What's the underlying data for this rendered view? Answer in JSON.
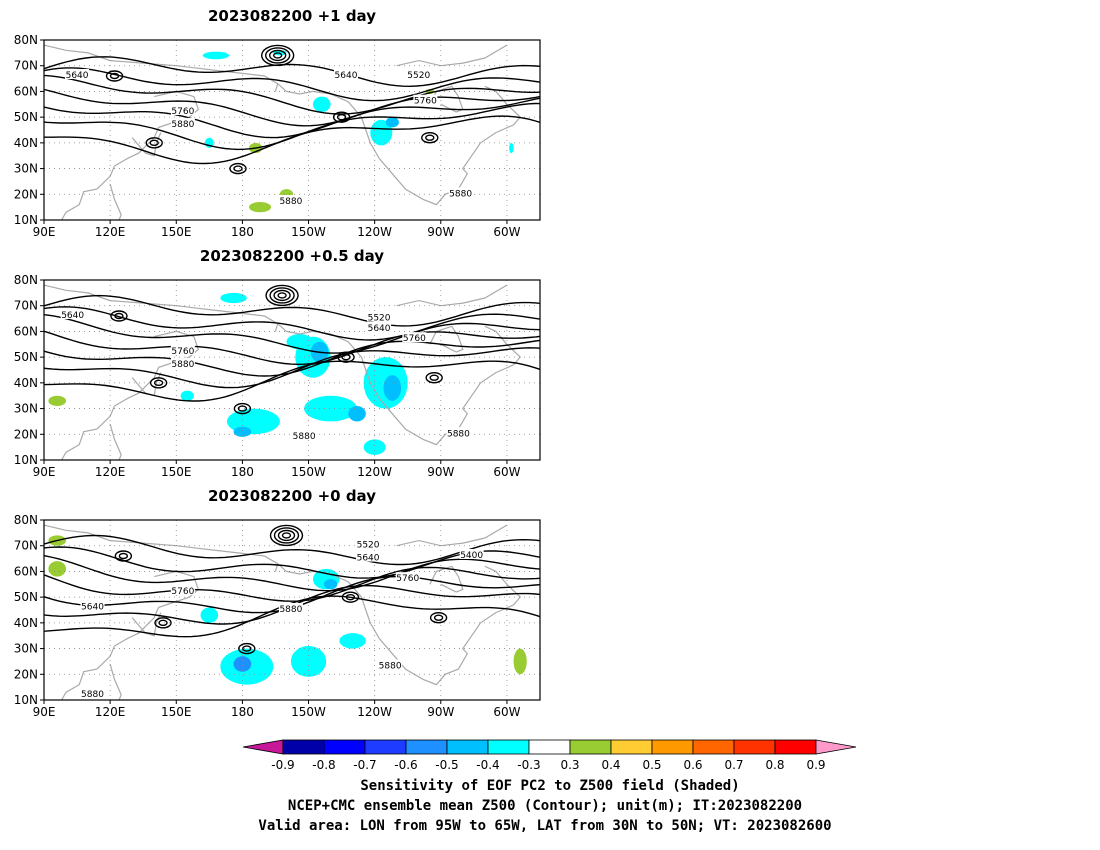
{
  "chart_data": {
    "type": "heatmap",
    "panels": [
      {
        "title": "2023082200 +1 day",
        "xticks": [
          "90E",
          "120E",
          "150E",
          "180",
          "150W",
          "120W",
          "90W",
          "60W"
        ],
        "yticks": [
          "80N",
          "70N",
          "60N",
          "50N",
          "40N",
          "30N",
          "20N",
          "10N"
        ],
        "contour_labels": [
          {
            "text": "5640",
            "lon": 105,
            "lat": 66
          },
          {
            "text": "5640",
            "lon": 227,
            "lat": 66
          },
          {
            "text": "5520",
            "lon": 260,
            "lat": 66
          },
          {
            "text": "5760",
            "lon": 153,
            "lat": 52
          },
          {
            "text": "5880",
            "lon": 153,
            "lat": 47
          },
          {
            "text": "5760",
            "lon": 263,
            "lat": 56
          },
          {
            "text": "5880",
            "lon": 202,
            "lat": 17
          },
          {
            "text": "5880",
            "lon": 279,
            "lat": 20
          }
        ]
      },
      {
        "title": "2023082200 +0.5 day",
        "xticks": [
          "90E",
          "120E",
          "150E",
          "180",
          "150W",
          "120W",
          "90W",
          "60W"
        ],
        "yticks": [
          "80N",
          "70N",
          "60N",
          "50N",
          "40N",
          "30N",
          "20N",
          "10N"
        ],
        "contour_labels": [
          {
            "text": "5640",
            "lon": 103,
            "lat": 66
          },
          {
            "text": "5520",
            "lon": 242,
            "lat": 65
          },
          {
            "text": "5640",
            "lon": 242,
            "lat": 61
          },
          {
            "text": "5760",
            "lon": 153,
            "lat": 52
          },
          {
            "text": "5880",
            "lon": 153,
            "lat": 47
          },
          {
            "text": "5760",
            "lon": 258,
            "lat": 57
          },
          {
            "text": "5880",
            "lon": 208,
            "lat": 19
          },
          {
            "text": "5880",
            "lon": 278,
            "lat": 20
          }
        ]
      },
      {
        "title": "2023082200 +0 day",
        "xticks": [
          "90E",
          "120E",
          "150E",
          "180",
          "150W",
          "120W",
          "90W",
          "60W"
        ],
        "yticks": [
          "80N",
          "70N",
          "60N",
          "50N",
          "40N",
          "30N",
          "20N",
          "10N"
        ],
        "contour_labels": [
          {
            "text": "5520",
            "lon": 237,
            "lat": 70
          },
          {
            "text": "5640",
            "lon": 237,
            "lat": 65
          },
          {
            "text": "5400",
            "lon": 284,
            "lat": 66
          },
          {
            "text": "5760",
            "lon": 255,
            "lat": 57
          },
          {
            "text": "5760",
            "lon": 153,
            "lat": 52
          },
          {
            "text": "5640",
            "lon": 112,
            "lat": 46
          },
          {
            "text": "5880",
            "lon": 202,
            "lat": 45
          },
          {
            "text": "5880",
            "lon": 247,
            "lat": 23
          },
          {
            "text": "5880",
            "lon": 112,
            "lat": 12
          }
        ]
      }
    ],
    "colorbar": {
      "ticks": [
        "-0.9",
        "-0.8",
        "-0.7",
        "-0.6",
        "-0.5",
        "-0.4",
        "-0.3",
        "0.3",
        "0.4",
        "0.5",
        "0.6",
        "0.7",
        "0.8",
        "0.9"
      ],
      "colors": [
        "#c8189a",
        "#0000a8",
        "#0000ff",
        "#1e3cff",
        "#1e90ff",
        "#00bfff",
        "#00ffff",
        "#ffffff",
        "#99cc33",
        "#ffcc33",
        "#ff9900",
        "#ff6600",
        "#ff3300",
        "#ff0000",
        "#ff99cc"
      ]
    },
    "colors": {
      "contour": "#000000",
      "coast": "#aaaaaa",
      "grid": "#888888"
    }
  },
  "caption": {
    "line1": "Sensitivity of EOF PC2 to Z500 field (Shaded)",
    "line2": "NCEP+CMC ensemble mean Z500 (Contour); unit(m); IT:2023082200",
    "line3": "Valid area: LON from 95W to 65W, LAT from 30N to 50N; VT: 2023082600"
  }
}
